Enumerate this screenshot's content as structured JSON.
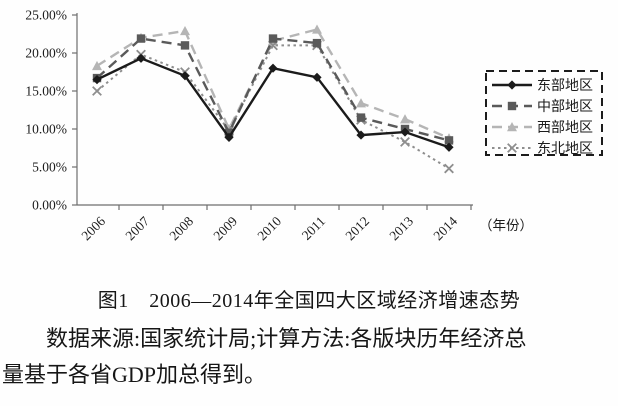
{
  "chart_data": {
    "type": "line",
    "title": "",
    "xlabel": "（年份）",
    "ylabel": "",
    "ylim": [
      0,
      25
    ],
    "grid": false,
    "legend_position": "right",
    "categories": [
      "2006",
      "2007",
      "2008",
      "2009",
      "2010",
      "2011",
      "2012",
      "2013",
      "2014"
    ],
    "yticks": [
      {
        "value": 25,
        "label": "25.00%"
      },
      {
        "value": 20,
        "label": "20.00%"
      },
      {
        "value": 15,
        "label": "15.00%"
      },
      {
        "value": 10,
        "label": "10.00%"
      },
      {
        "value": 5,
        "label": "5.00%"
      },
      {
        "value": 0,
        "label": "0.00%"
      }
    ],
    "series": [
      {
        "key": "east",
        "name": "东部地区",
        "color": "#1b1b1b",
        "dash": "solid",
        "marker": "diamond",
        "values": [
          16.5,
          19.3,
          17.0,
          8.9,
          18.0,
          16.8,
          9.2,
          9.6,
          7.6
        ]
      },
      {
        "key": "central",
        "name": "中部地区",
        "color": "#5a5a5a",
        "dash": "dashed",
        "marker": "square",
        "values": [
          16.7,
          21.9,
          21.0,
          9.5,
          21.9,
          21.3,
          11.5,
          10.0,
          8.5
        ]
      },
      {
        "key": "west",
        "name": "西部地区",
        "color": "#b5b5b5",
        "dash": "dashed",
        "marker": "triangle",
        "values": [
          18.3,
          22.0,
          22.9,
          10.0,
          21.6,
          23.1,
          13.4,
          11.3,
          8.8
        ]
      },
      {
        "key": "northeast",
        "name": "东北地区",
        "color": "#8e8e8e",
        "dash": "dotted",
        "marker": "x",
        "values": [
          15.0,
          19.8,
          17.5,
          9.8,
          21.0,
          21.0,
          11.2,
          8.3,
          4.8
        ]
      }
    ]
  },
  "caption": "图1　2006—2014年全国四大区域经济增速态势",
  "source_note": "数据来源:国家统计局;计算方法:各版块历年经济总\n量基于各省GDP加总得到。"
}
